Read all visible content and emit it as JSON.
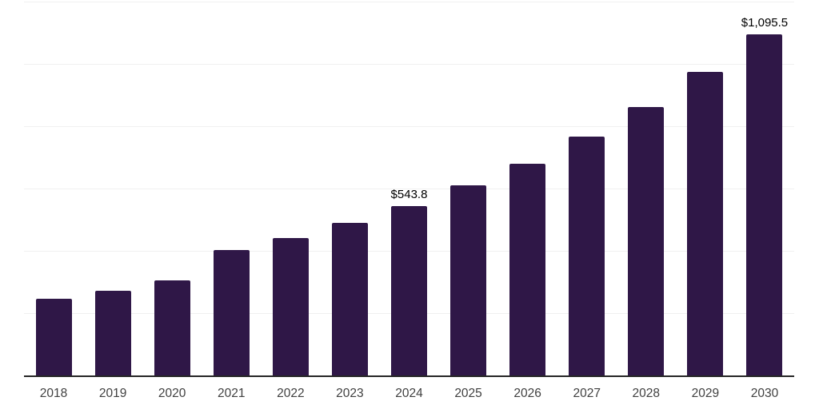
{
  "chart_data": {
    "type": "bar",
    "title": "",
    "subtitle": "",
    "xlabel": "",
    "ylabel": "",
    "legend": "none",
    "grid": "horizontal",
    "ylim": [
      0,
      1200
    ],
    "gridline_interval": 200,
    "categories": [
      "2018",
      "2019",
      "2020",
      "2021",
      "2022",
      "2023",
      "2024",
      "2025",
      "2026",
      "2027",
      "2028",
      "2029",
      "2030"
    ],
    "values": [
      246,
      271,
      304,
      402,
      441,
      489,
      543.8,
      609,
      680,
      766,
      862,
      974,
      1095.5
    ],
    "data_labels": {
      "2024": "$543.8",
      "2030": "$1,095.5"
    },
    "colors": {
      "bar": "#2f1747",
      "gridline": "#f0f0f0",
      "axis_line": "#262626",
      "x_label": "#404040",
      "data_label": "#000000",
      "background": "#ffffff"
    }
  }
}
